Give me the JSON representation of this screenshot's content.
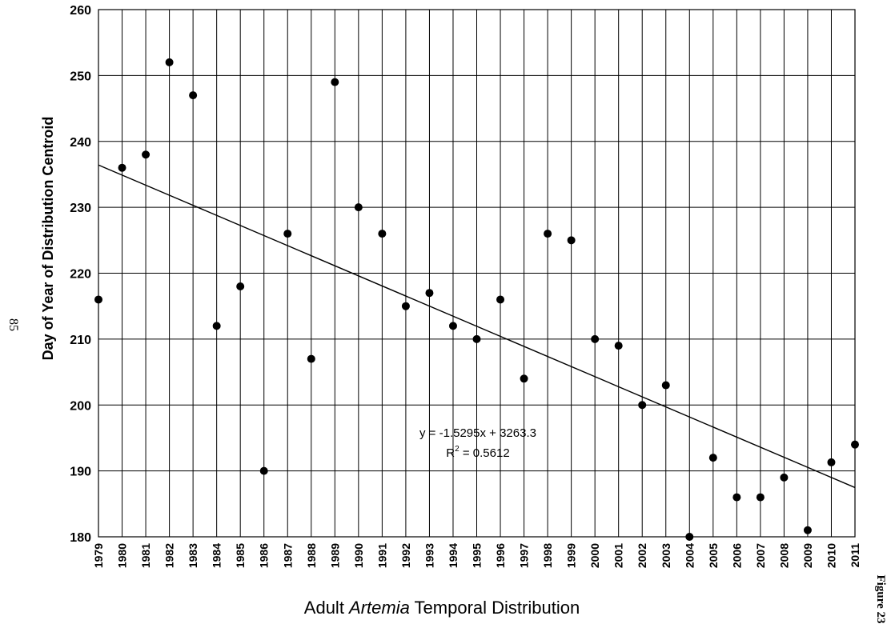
{
  "page": {
    "page_number": "85",
    "figure_label": "Figure 23"
  },
  "chart_data": {
    "type": "scatter",
    "xlabel_pre": "Adult ",
    "xlabel_italic": "Artemia",
    "xlabel_post": " Temporal Distribution",
    "ylabel": "Day of Year of Distribution Centroid",
    "ylim": [
      180,
      260
    ],
    "yticks": [
      180,
      190,
      200,
      210,
      220,
      230,
      240,
      250,
      260
    ],
    "xlim": [
      1979,
      2011
    ],
    "grid": true,
    "legend": "none",
    "marker_color": "#000000",
    "x": [
      1979,
      1980,
      1981,
      1982,
      1983,
      1984,
      1985,
      1986,
      1987,
      1988,
      1989,
      1990,
      1991,
      1992,
      1993,
      1994,
      1995,
      1996,
      1997,
      1998,
      1999,
      2000,
      2001,
      2002,
      2003,
      2004,
      2005,
      2006,
      2007,
      2008,
      2009,
      2010,
      2011
    ],
    "y": [
      216,
      236,
      238,
      252,
      247,
      212,
      218,
      190,
      226,
      207,
      249,
      230,
      226,
      215,
      217,
      212,
      210,
      216,
      204,
      226,
      225,
      210,
      209,
      200,
      203,
      180,
      192,
      186,
      186,
      189,
      181,
      191.3,
      194
    ],
    "trendline": {
      "slope": -1.5295,
      "intercept": 3263.3,
      "equation": "y = -1.5295x + 3263.3",
      "r2_prefix": "R",
      "r2_sup": "2",
      "r2_suffix": " = 0.5612"
    }
  }
}
